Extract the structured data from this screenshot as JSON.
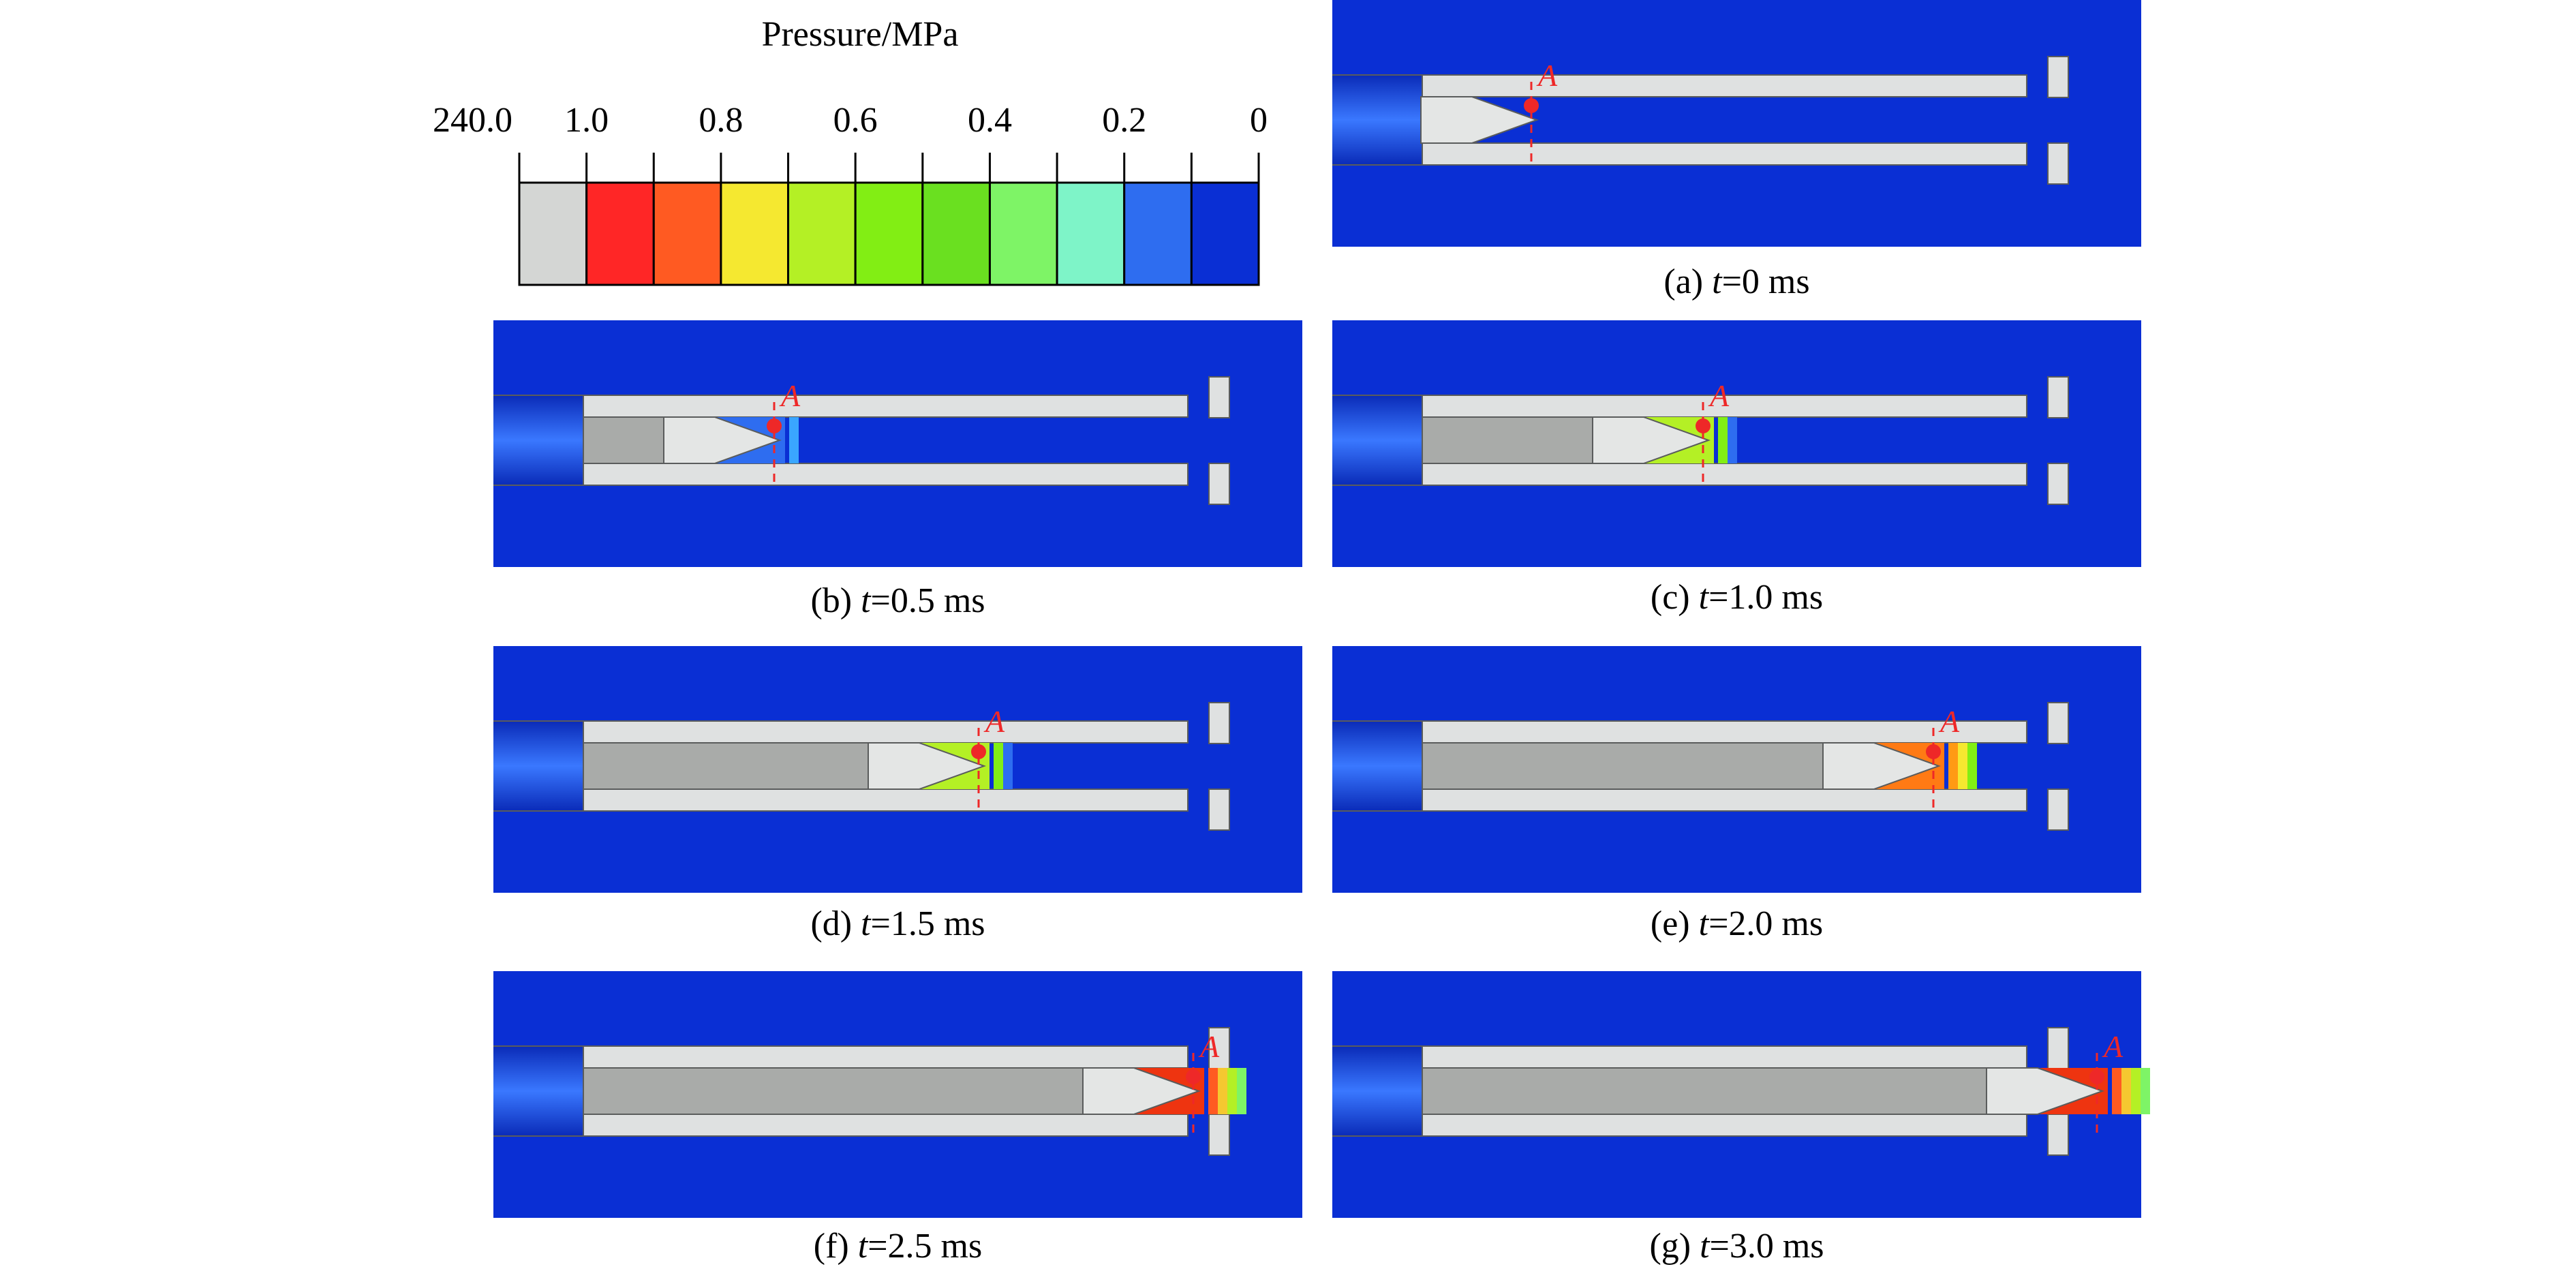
{
  "legend": {
    "title": "Pressure/MPa",
    "tick_labels": [
      "240.0",
      "1.0",
      "0.8",
      "0.6",
      "0.4",
      "0.2",
      "0"
    ],
    "swatch_colors": [
      "#d4d6d4",
      "#ff2626",
      "#ff5a22",
      "#f5e830",
      "#b4f025",
      "#82ee14",
      "#6ae020",
      "#7ef466",
      "#7ef4c8",
      "#2e6df0",
      "#0a2fd4"
    ]
  },
  "colors": {
    "background": "#0a2fd4",
    "wall": "#dfe1e1",
    "gas": "#a9aba9",
    "projectile": "#e4e6e5",
    "marker": "#ee2828",
    "outline": "#5a5c5c"
  },
  "marker_label": "A",
  "panels": [
    {
      "label": "(a)",
      "t_symbol": "t",
      "time_text": "=0 ms",
      "pressure_front": "none"
    },
    {
      "label": "(b)",
      "t_symbol": "t",
      "time_text": "=0.5 ms",
      "pressure_front": "blue"
    },
    {
      "label": "(c)",
      "t_symbol": "t",
      "time_text": "=1.0 ms",
      "pressure_front": "green"
    },
    {
      "label": "(d)",
      "t_symbol": "t",
      "time_text": "=1.5 ms",
      "pressure_front": "green"
    },
    {
      "label": "(e)",
      "t_symbol": "t",
      "time_text": "=2.0 ms",
      "pressure_front": "orange"
    },
    {
      "label": "(f)",
      "t_symbol": "t",
      "time_text": "=2.5 ms",
      "pressure_front": "red"
    },
    {
      "label": "(g)",
      "t_symbol": "t",
      "time_text": "=3.0 ms",
      "pressure_front": "red"
    }
  ]
}
